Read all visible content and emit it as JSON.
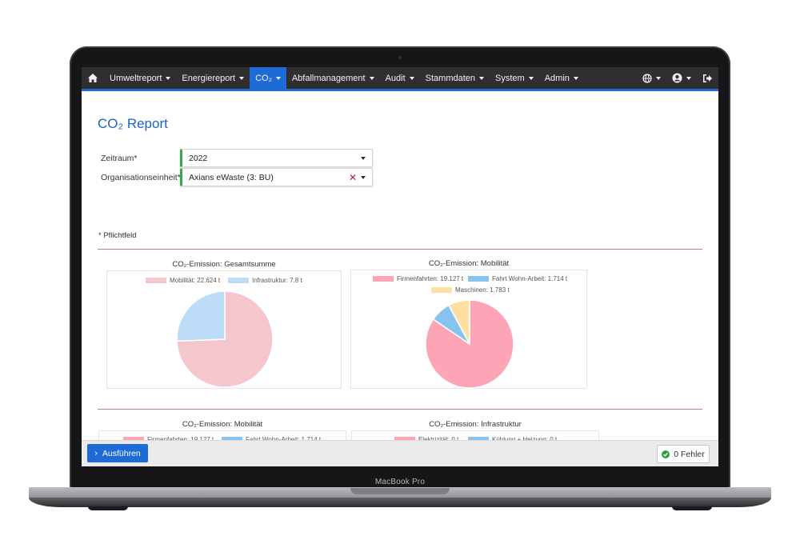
{
  "device": {
    "label": "MacBook Pro"
  },
  "navbar": {
    "home_icon": "home-icon",
    "items": [
      {
        "label": "Umweltreport",
        "active": false
      },
      {
        "label": "Energiereport",
        "active": false
      },
      {
        "label": "CO₂",
        "active": true
      },
      {
        "label": "Abfallmanagement",
        "active": false
      },
      {
        "label": "Audit",
        "active": false
      },
      {
        "label": "Stammdaten",
        "active": false
      },
      {
        "label": "System",
        "active": false
      },
      {
        "label": "Admin",
        "active": false
      }
    ],
    "right_icons": [
      "globe-icon",
      "user-icon",
      "sign-out-icon"
    ],
    "colors": {
      "bar": "#2f2f30",
      "accent": "#1e6bd6"
    }
  },
  "page": {
    "title": "CO₂ Report",
    "form": {
      "period_label": "Zeitraum*",
      "period_value": "2022",
      "org_label": "Organisationseinheit*",
      "org_value": "Axians eWaste (3: BU)"
    },
    "required_note": "* Pflichtfeld"
  },
  "chart_data": [
    {
      "type": "pie",
      "title": "CO₂-Emission: Gesamtsumme",
      "series": [
        {
          "name": "Mobilität: 22.624 t",
          "value": 22.624,
          "color": "#f4c6cd"
        },
        {
          "name": "Infrastruktur: 7.8 t",
          "value": 7.8,
          "color": "#bcdcf8"
        }
      ]
    },
    {
      "type": "pie",
      "title": "CO₂-Emission: Mobilität",
      "series": [
        {
          "name": "Firmenfahrten: 19.127 t",
          "value": 19.127,
          "color": "#fda4b6"
        },
        {
          "name": "Fahrt Wohn-Arbeit: 1.714 t",
          "value": 1.714,
          "color": "#86c3ee"
        },
        {
          "name": "Maschinen: 1.783 t",
          "value": 1.783,
          "color": "#fde0a2"
        }
      ]
    },
    {
      "type": "pie",
      "title": "CO₂-Emission: Mobilität",
      "series": [
        {
          "name": "Firmenfahrten: 19.127 t",
          "color": "#fda4b6"
        },
        {
          "name": "Fahrt Wohn-Arbeit: 1.714 t",
          "color": "#86c3ee"
        }
      ]
    },
    {
      "type": "pie",
      "title": "CO₂-Emission: Infrastruktur",
      "series": [
        {
          "name": "Elektrizität: 0 t",
          "color": "#fda4b6"
        },
        {
          "name": "Kühlung + Heizung: 0 t",
          "color": "#86c3ee"
        }
      ]
    }
  ],
  "footer": {
    "run_label": "Ausführen",
    "errors_label": "0 Fehler"
  }
}
